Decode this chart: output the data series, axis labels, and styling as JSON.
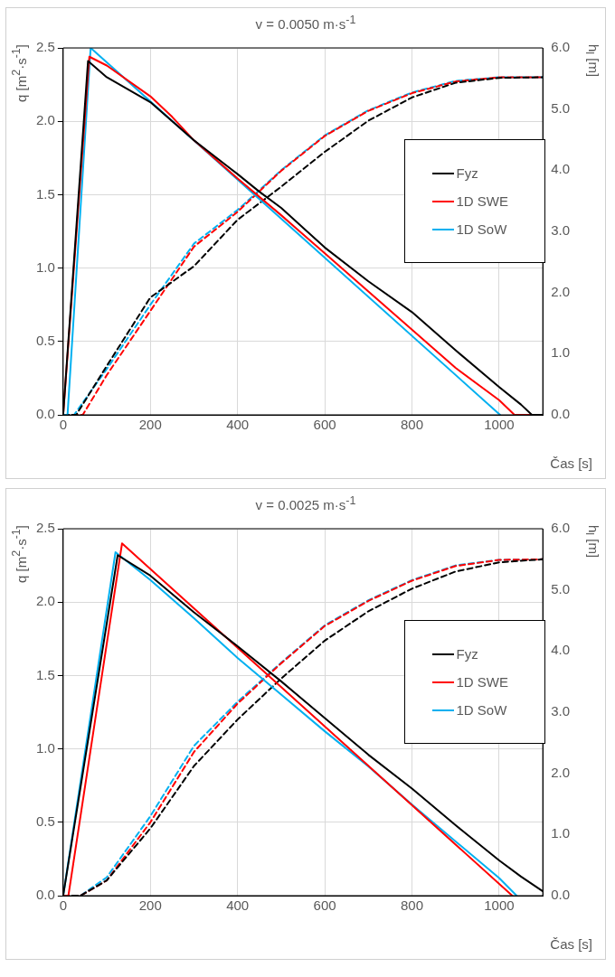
{
  "chart_data": [
    {
      "type": "line",
      "title": "v = 0.0050 m·s$^{-1}$",
      "xlabel": "Čas [s]",
      "ylabel": "q [m$^{2}$·s$^{-1}$]",
      "y2label": "h$_{l}$ [m]",
      "xlim": [
        0,
        1100
      ],
      "xticks": [
        0,
        200,
        400,
        600,
        800,
        1000
      ],
      "ylim": [
        0,
        2.5
      ],
      "yticks": [
        {
          "value": 0,
          "label": "0.0"
        },
        {
          "value": 0.5,
          "label": "0.5"
        },
        {
          "value": 1,
          "label": "1.0"
        },
        {
          "value": 1.5,
          "label": "1.5"
        },
        {
          "value": 2,
          "label": "2.0"
        },
        {
          "value": 2.5,
          "label": "2.5"
        }
      ],
      "y2lim": [
        0,
        6
      ],
      "y2ticks": [
        {
          "value": 0,
          "label": "0.0"
        },
        {
          "value": 1,
          "label": "1.0"
        },
        {
          "value": 2,
          "label": "2.0"
        },
        {
          "value": 3,
          "label": "3.0"
        },
        {
          "value": 4,
          "label": "4.0"
        },
        {
          "value": 5,
          "label": "5.0"
        },
        {
          "value": 6,
          "label": "6.0"
        }
      ],
      "grid": true,
      "legend": "right",
      "marker": "none",
      "series": [
        {
          "name": "Fyz",
          "color": "#000000",
          "line_style": "solid",
          "x": [
            0,
            57,
            100,
            200,
            300,
            400,
            450,
            500,
            600,
            700,
            800,
            900,
            1000,
            1050,
            1075,
            1100
          ],
          "values": [
            0,
            2.41,
            2.3,
            2.13,
            1.87,
            1.64,
            1.52,
            1.41,
            1.14,
            0.91,
            0.7,
            0.44,
            0.19,
            0.07,
            0,
            0
          ]
        },
        {
          "name": "1D SWE",
          "color": "#ff0000",
          "line_style": "solid",
          "x": [
            0,
            60,
            100,
            200,
            250,
            300,
            400,
            500,
            600,
            700,
            800,
            900,
            1000,
            1035,
            1100
          ],
          "values": [
            0,
            2.44,
            2.38,
            2.17,
            2.03,
            1.87,
            1.61,
            1.36,
            1.1,
            0.84,
            0.58,
            0.32,
            0.1,
            0,
            0
          ]
        },
        {
          "name": "1D SoW",
          "color": "#00b0f0",
          "line_style": "solid",
          "x": [
            0,
            10,
            63,
            1002
          ],
          "values": [
            0,
            0,
            2.5,
            0
          ]
        },
        {
          "color": "#000000",
          "axis": "y2",
          "line_style": "dashed",
          "x": [
            0,
            30,
            100,
            200,
            300,
            400,
            500,
            600,
            700,
            800,
            900,
            1000,
            1100
          ],
          "values": [
            0,
            0,
            0.8,
            1.92,
            2.43,
            3.19,
            3.73,
            4.3,
            4.81,
            5.19,
            5.43,
            5.51,
            5.52
          ]
        },
        {
          "color": "#ff0000",
          "axis": "y2",
          "line_style": "dashed",
          "x": [
            0,
            45,
            100,
            200,
            300,
            400,
            500,
            600,
            700,
            800,
            900,
            1000,
            1100
          ],
          "values": [
            0,
            0,
            0.65,
            1.7,
            2.75,
            3.32,
            3.99,
            4.56,
            4.97,
            5.26,
            5.45,
            5.52,
            5.52
          ]
        },
        {
          "color": "#00b0f0",
          "axis": "y2",
          "line_style": "dashed",
          "x": [
            0,
            25,
            100,
            200,
            300,
            400,
            500,
            600,
            700,
            800,
            900,
            1000,
            1100
          ],
          "values": [
            0,
            0,
            0.75,
            1.8,
            2.8,
            3.35,
            4.0,
            4.57,
            4.98,
            5.27,
            5.46,
            5.52,
            5.52
          ]
        }
      ]
    },
    {
      "type": "line",
      "title": "v = 0.0025 m·s$^{-1}$",
      "xlabel": "Čas [s]",
      "ylabel": "q [m$^{2}$·s$^{-1}$]",
      "y2label": "h$_{l}$ [m]",
      "xlim": [
        0,
        1100
      ],
      "xticks": [
        0,
        200,
        400,
        600,
        800,
        1000
      ],
      "ylim": [
        0,
        2.5
      ],
      "yticks": [
        {
          "value": 0,
          "label": "0.0"
        },
        {
          "value": 0.5,
          "label": "0.5"
        },
        {
          "value": 1,
          "label": "1.0"
        },
        {
          "value": 1.5,
          "label": "1.5"
        },
        {
          "value": 2,
          "label": "2.0"
        },
        {
          "value": 2.5,
          "label": "2.5"
        }
      ],
      "y2lim": [
        0,
        6
      ],
      "y2ticks": [
        {
          "value": 0,
          "label": "0.0"
        },
        {
          "value": 1,
          "label": "1.0"
        },
        {
          "value": 2,
          "label": "2.0"
        },
        {
          "value": 3,
          "label": "3.0"
        },
        {
          "value": 4,
          "label": "4.0"
        },
        {
          "value": 5,
          "label": "5.0"
        },
        {
          "value": 6,
          "label": "6.0"
        }
      ],
      "grid": true,
      "legend": "right",
      "marker": "none",
      "series": [
        {
          "name": "Fyz",
          "color": "#000000",
          "line_style": "solid",
          "x": [
            0,
            125,
            200,
            300,
            400,
            500,
            600,
            700,
            800,
            900,
            1000,
            1050,
            1100
          ],
          "values": [
            0,
            2.32,
            2.18,
            1.93,
            1.7,
            1.46,
            1.21,
            0.96,
            0.73,
            0.48,
            0.24,
            0.13,
            0.03
          ]
        },
        {
          "name": "1D SWE",
          "color": "#ff0000",
          "line_style": "solid",
          "x": [
            0,
            12,
            135,
            1030
          ],
          "values": [
            0,
            0,
            2.4,
            0
          ]
        },
        {
          "name": "1D SoW",
          "color": "#00b0f0",
          "line_style": "solid",
          "x": [
            0,
            120,
            200,
            300,
            400,
            500,
            600,
            700,
            800,
            900,
            1000,
            1040
          ],
          "values": [
            0,
            2.34,
            2.15,
            1.89,
            1.62,
            1.37,
            1.12,
            0.88,
            0.62,
            0.37,
            0.12,
            0
          ]
        },
        {
          "color": "#000000",
          "axis": "y2",
          "line_style": "dashed",
          "x": [
            0,
            40,
            100,
            200,
            300,
            400,
            500,
            600,
            700,
            800,
            900,
            1000,
            1100
          ],
          "values": [
            0,
            0,
            0.25,
            1.1,
            2.12,
            2.88,
            3.55,
            4.17,
            4.65,
            5.02,
            5.3,
            5.45,
            5.5
          ]
        },
        {
          "color": "#ff0000",
          "axis": "y2",
          "line_style": "dashed",
          "x": [
            0,
            40,
            100,
            200,
            300,
            400,
            500,
            600,
            700,
            800,
            900,
            1000,
            1100
          ],
          "values": [
            0,
            0,
            0.25,
            1.2,
            2.35,
            3.14,
            3.8,
            4.41,
            4.82,
            5.15,
            5.39,
            5.49,
            5.5
          ]
        },
        {
          "color": "#00b0f0",
          "axis": "y2",
          "line_style": "dashed",
          "x": [
            0,
            40,
            100,
            200,
            300,
            400,
            500,
            600,
            700,
            800,
            900,
            1000,
            1100
          ],
          "values": [
            0,
            0,
            0.3,
            1.3,
            2.45,
            3.17,
            3.81,
            4.42,
            4.83,
            5.16,
            5.4,
            5.49,
            5.5
          ]
        }
      ]
    }
  ]
}
